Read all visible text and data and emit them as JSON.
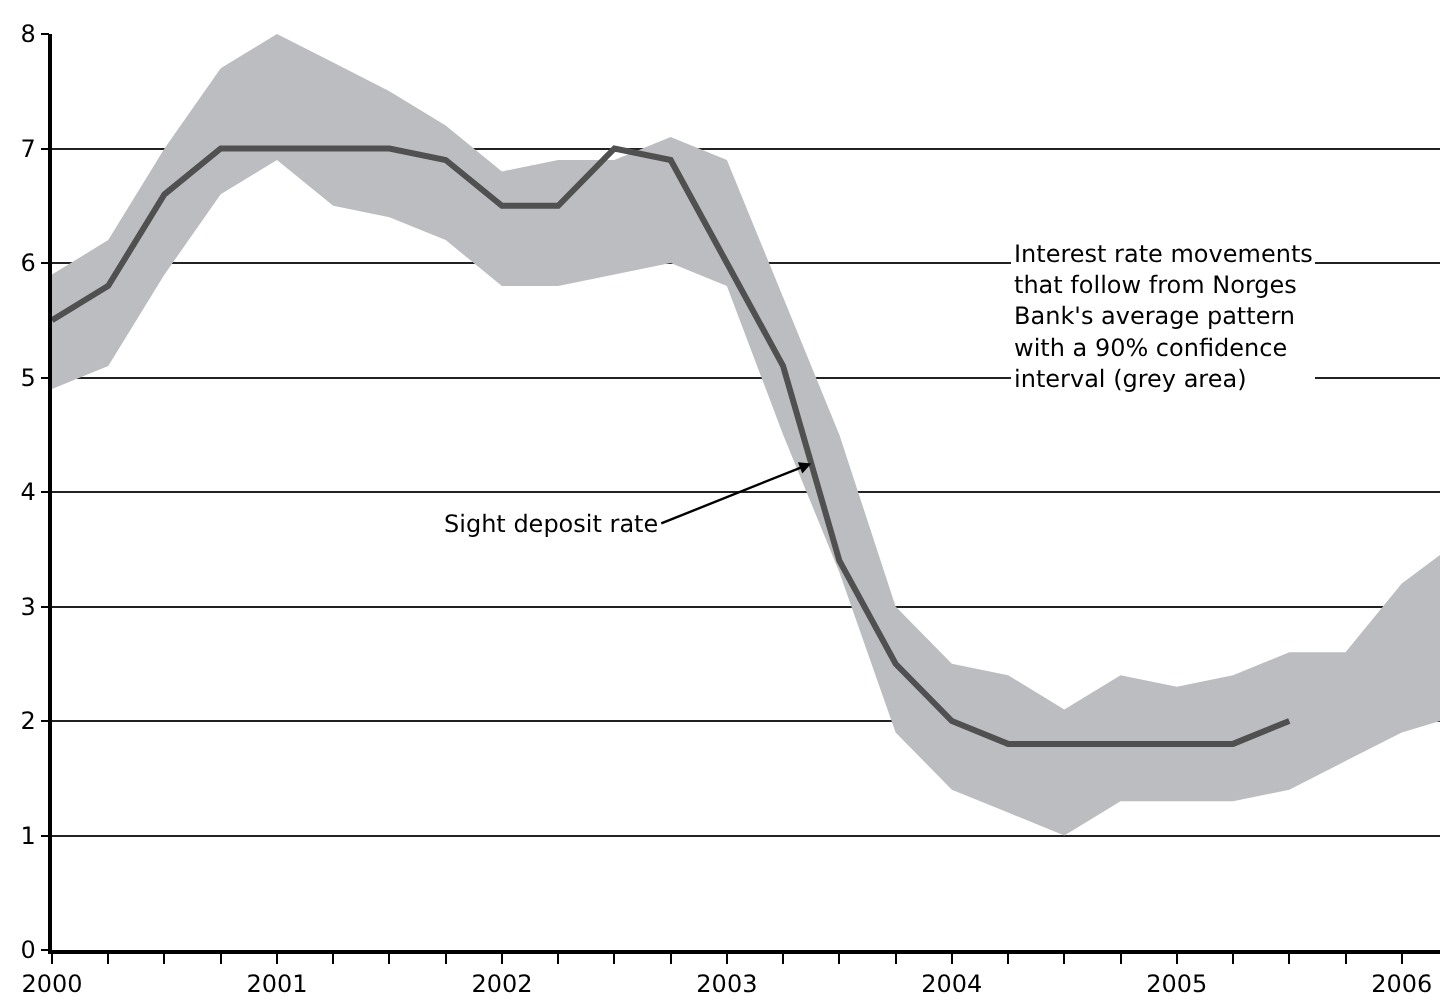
{
  "chart_data": {
    "type": "line",
    "x": [
      2000,
      2000.25,
      2000.5,
      2000.75,
      2001,
      2001.25,
      2001.5,
      2001.75,
      2002,
      2002.25,
      2002.5,
      2002.75,
      2003,
      2003.25,
      2003.5,
      2003.75,
      2004,
      2004.25,
      2004.5,
      2004.75,
      2005,
      2005.25,
      2005.5,
      2005.75,
      2006,
      2006.17
    ],
    "series": [
      {
        "name": "Sight deposit rate",
        "color": "#505050",
        "values": [
          5.5,
          5.8,
          6.6,
          7.0,
          7.0,
          7.0,
          7.0,
          6.9,
          6.5,
          6.5,
          7.0,
          6.9,
          6.0,
          5.1,
          3.4,
          2.5,
          2.0,
          1.8,
          1.8,
          1.8,
          1.8,
          1.8,
          2.0,
          null,
          null,
          null
        ],
        "lower": [
          4.9,
          5.1,
          5.9,
          6.6,
          6.9,
          6.5,
          6.4,
          6.2,
          5.8,
          5.8,
          5.9,
          6.0,
          5.8,
          4.5,
          3.3,
          1.9,
          1.4,
          1.2,
          1.0,
          1.3,
          1.3,
          1.3,
          1.4,
          1.65,
          1.9,
          2.0
        ],
        "upper": [
          5.9,
          6.2,
          7.0,
          7.7,
          8.0,
          7.75,
          7.5,
          7.2,
          6.8,
          6.9,
          6.9,
          7.1,
          6.9,
          5.7,
          4.5,
          3.0,
          2.5,
          2.4,
          2.1,
          2.4,
          2.3,
          2.4,
          2.6,
          2.6,
          3.2,
          3.45
        ]
      }
    ],
    "annotations": [
      "Interest rate movements\nthat follow from Norges\nBank's average pattern\nwith a 90% confidence\ninterval (grey area)"
    ],
    "xlim": [
      2000,
      2006.17
    ],
    "xticks": [
      2000,
      {
        "value": 2000.25,
        "label": null
      },
      {
        "value": 2000.5,
        "label": null
      },
      {
        "value": 2000.75,
        "label": null
      },
      2001,
      {
        "value": 2001.25,
        "label": null
      },
      {
        "value": 2001.5,
        "label": null
      },
      {
        "value": 2001.75,
        "label": null
      },
      2002,
      {
        "value": 2002.25,
        "label": null
      },
      {
        "value": 2002.5,
        "label": null
      },
      {
        "value": 2002.75,
        "label": null
      },
      2003,
      {
        "value": 2003.25,
        "label": null
      },
      {
        "value": 2003.5,
        "label": null
      },
      {
        "value": 2003.75,
        "label": null
      },
      2004,
      {
        "value": 2004.25,
        "label": null
      },
      {
        "value": 2004.5,
        "label": null
      },
      {
        "value": 2004.75,
        "label": null
      },
      2005,
      {
        "value": 2005.25,
        "label": null
      },
      {
        "value": 2005.5,
        "label": null
      },
      {
        "value": 2005.75,
        "label": null
      },
      2006
    ],
    "ylim": [
      0,
      8
    ],
    "yticks": [
      0,
      1,
      2,
      3,
      4,
      5,
      6,
      7,
      8
    ],
    "grid": "y",
    "legend": false,
    "line_style": "solid",
    "marker": "none"
  }
}
